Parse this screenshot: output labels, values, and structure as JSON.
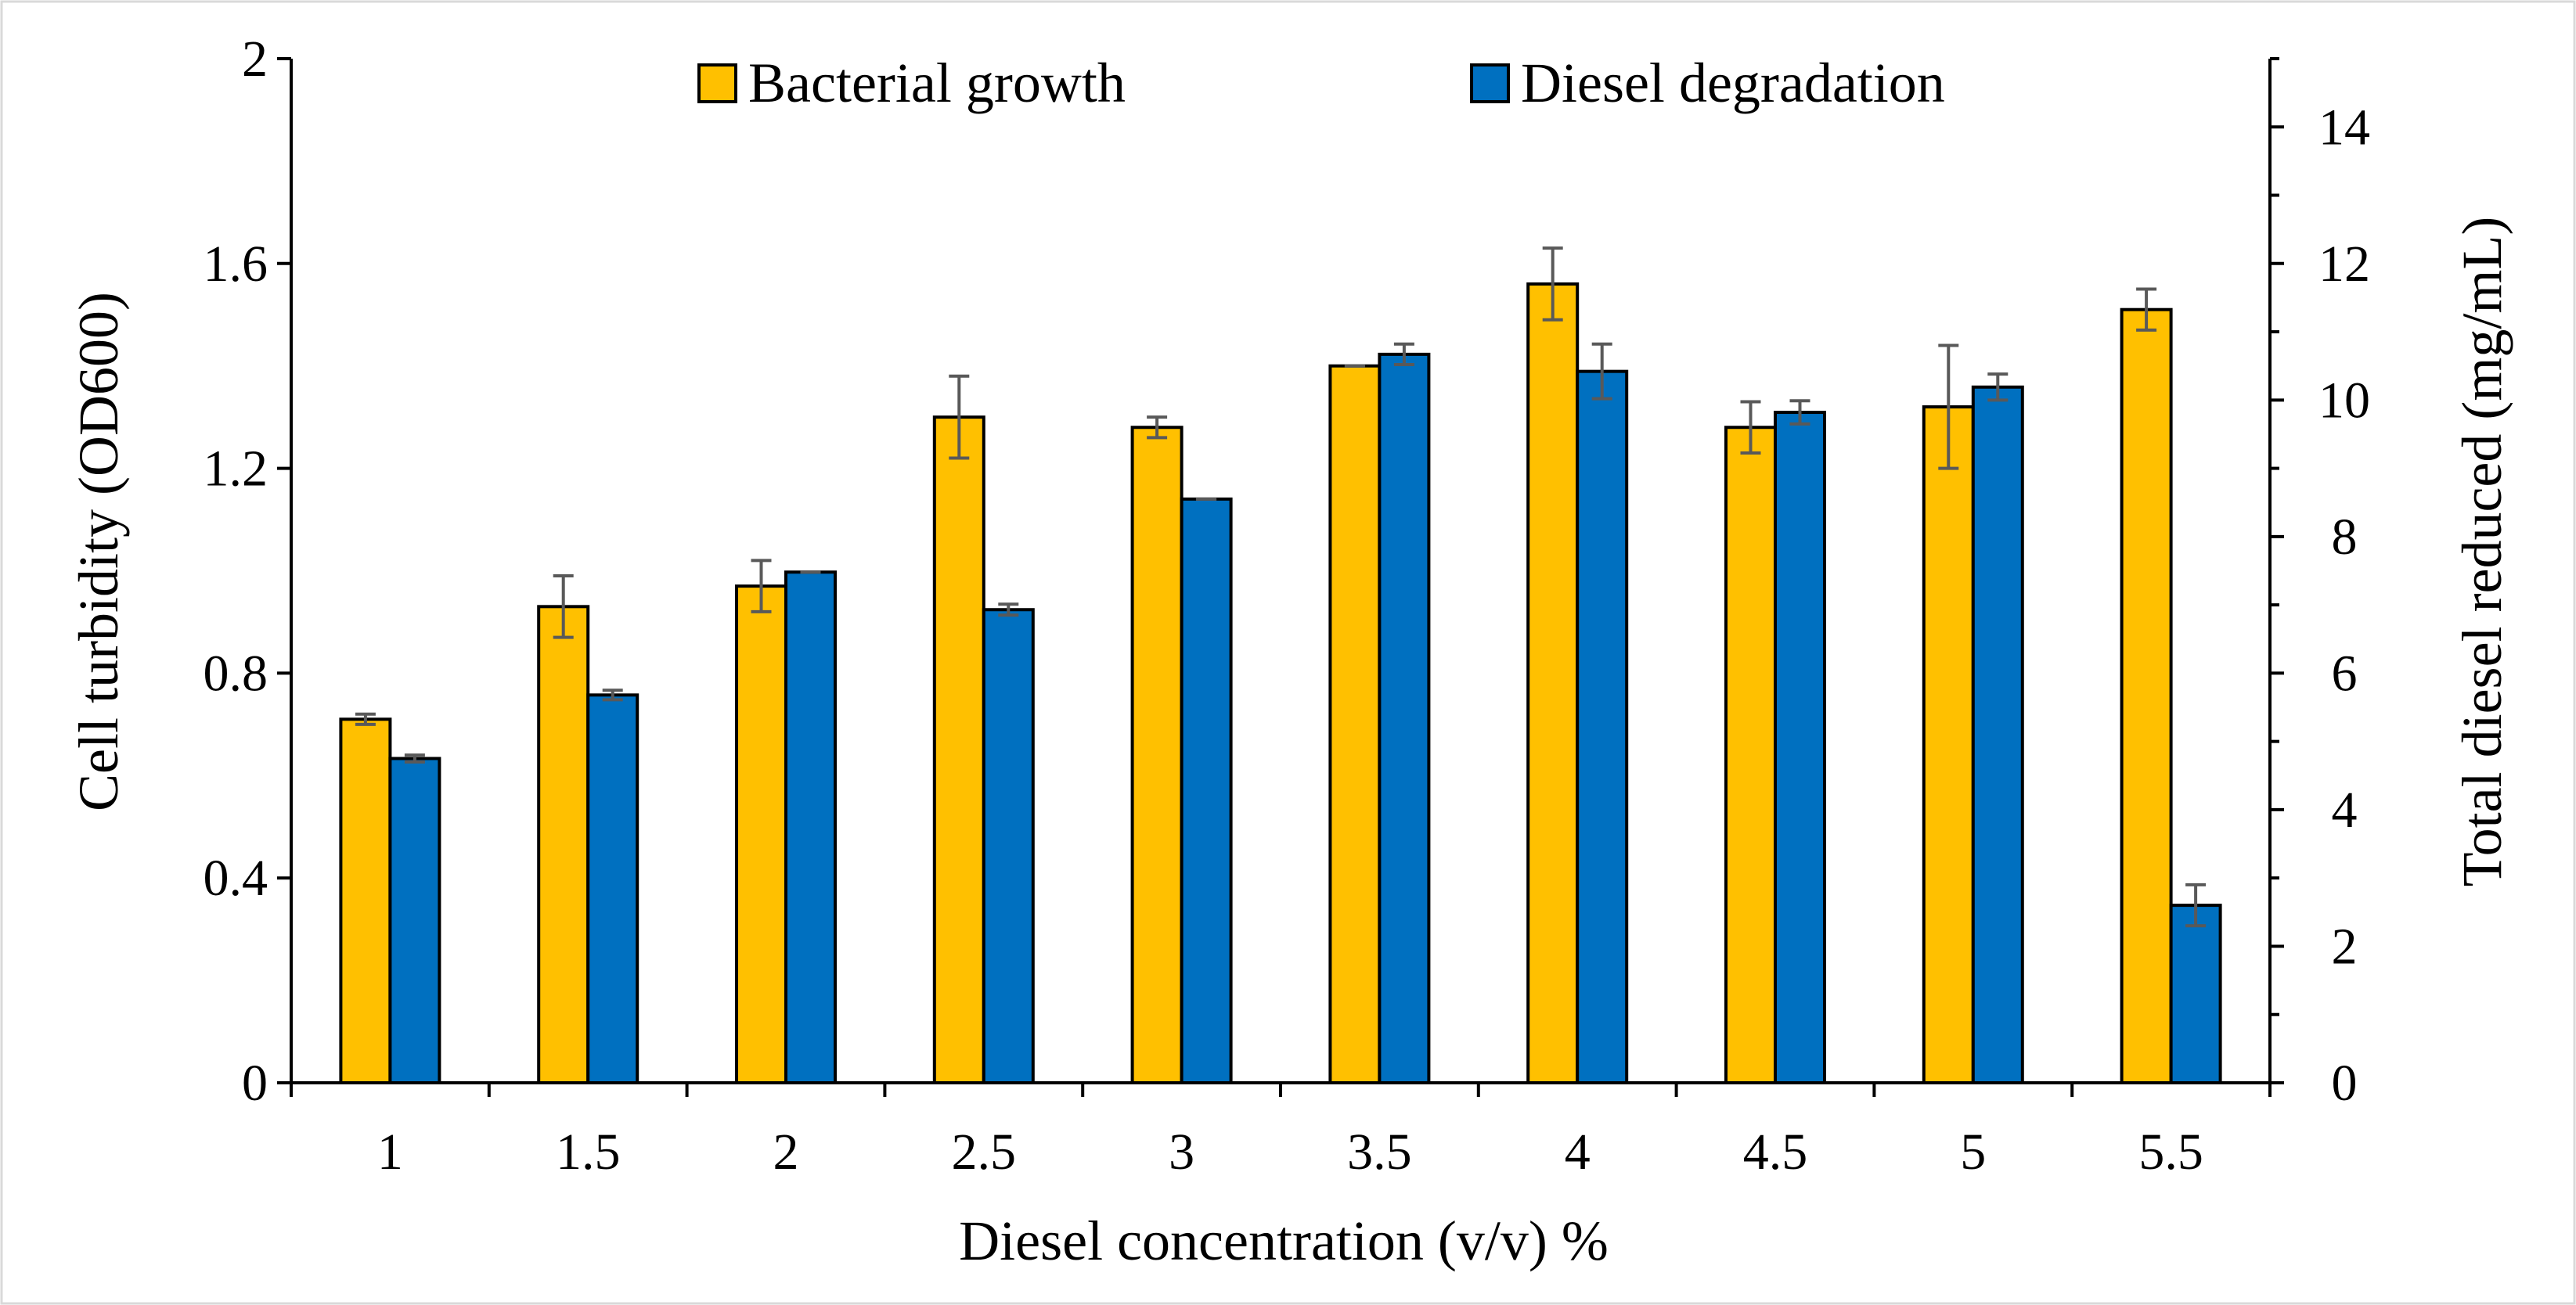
{
  "chart_data": {
    "type": "bar",
    "title": "",
    "xlabel": "Diesel concentration (v/v) %",
    "ylabel": "Cell turbidity (OD600)",
    "y2label": "Total diesel reduced (mg/mL)",
    "categories": [
      "1",
      "1.5",
      "2",
      "2.5",
      "3",
      "3.5",
      "4",
      "4.5",
      "5",
      "5.5"
    ],
    "ylim": [
      0,
      2
    ],
    "yticks": [
      "0",
      "0.4",
      "0.8",
      "1.2",
      "1.6",
      "2"
    ],
    "y2lim": [
      0,
      15
    ],
    "y2ticks": [
      "0",
      "2",
      "4",
      "6",
      "8",
      "10",
      "12",
      "14"
    ],
    "legend_position": "top",
    "series": [
      {
        "name": "Bacterial growth",
        "axis": "left",
        "color": "#FFC000",
        "values": [
          0.71,
          0.93,
          0.97,
          1.3,
          1.28,
          1.4,
          1.56,
          1.28,
          1.32,
          1.51
        ],
        "errors": [
          0.01,
          0.06,
          0.05,
          0.08,
          0.02,
          0.0,
          0.07,
          0.05,
          0.12,
          0.04
        ]
      },
      {
        "name": "Diesel degradation",
        "axis": "right",
        "color": "#0070C0",
        "values": [
          4.75,
          5.68,
          7.48,
          6.93,
          8.55,
          10.67,
          10.42,
          9.82,
          10.19,
          2.6
        ],
        "errors": [
          0.05,
          0.07,
          0.0,
          0.08,
          0.0,
          0.15,
          0.4,
          0.17,
          0.19,
          0.3
        ]
      }
    ]
  },
  "colors": {
    "bar_outline": "#000000",
    "error_bar": "#595959",
    "axis": "#000000"
  }
}
